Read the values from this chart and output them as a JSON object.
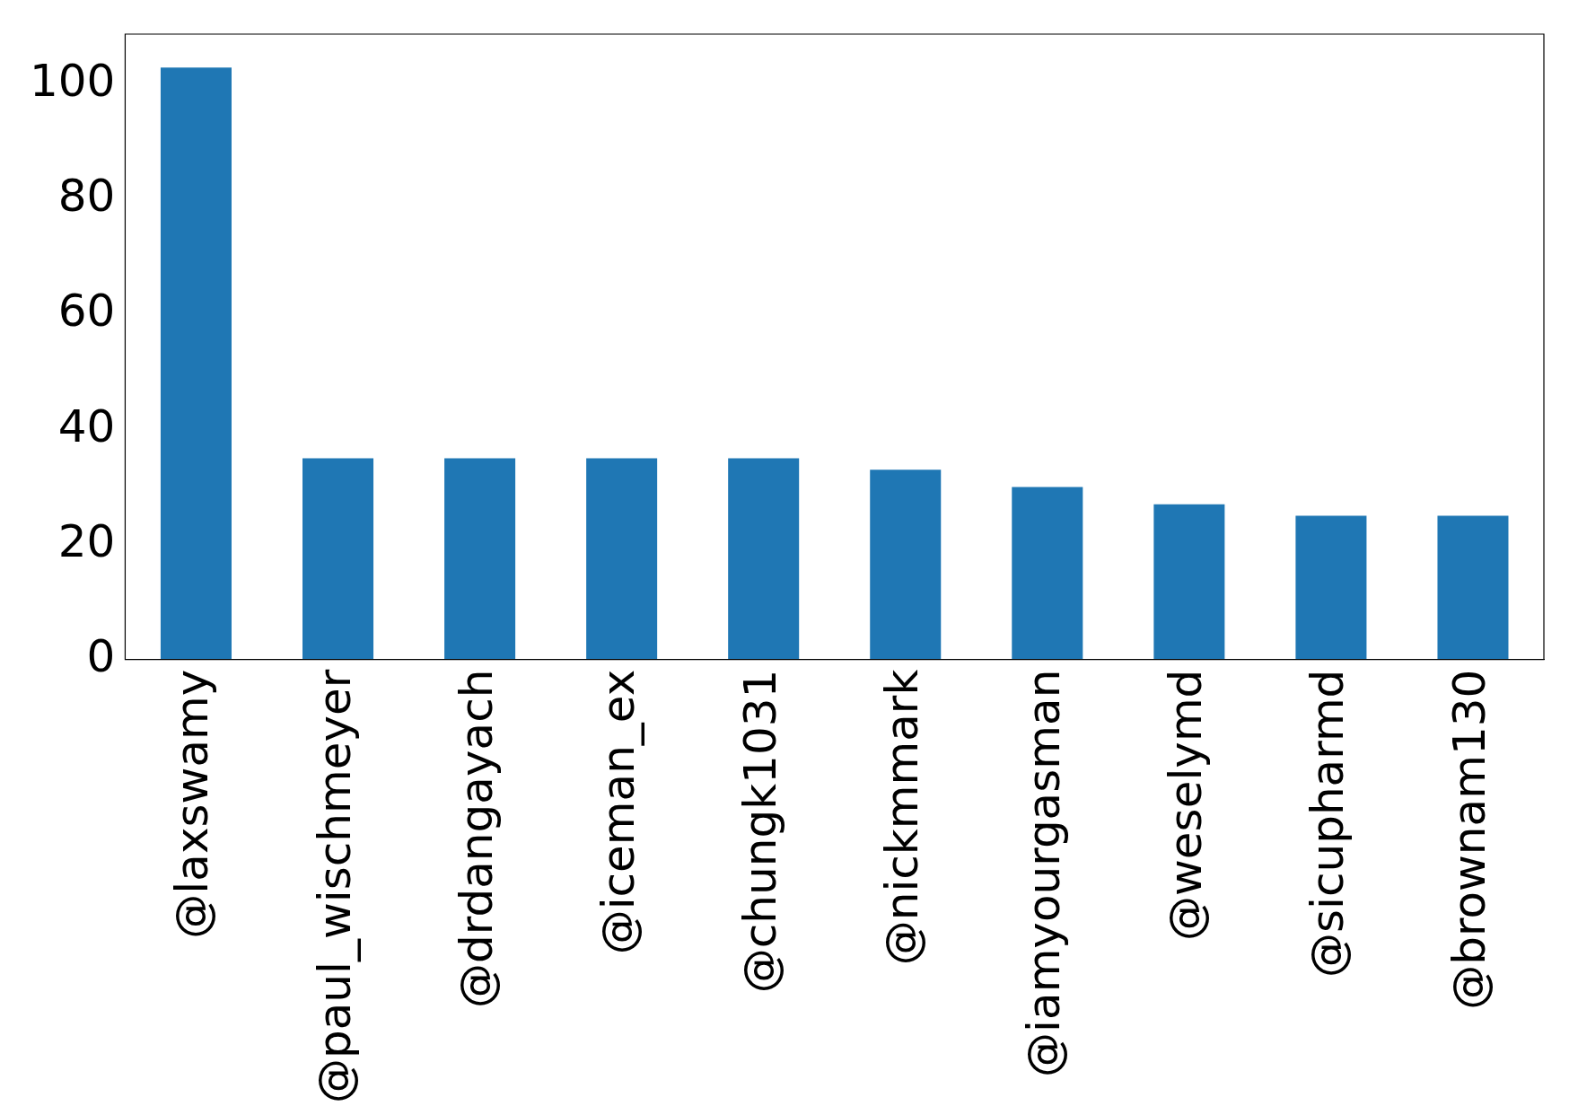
{
  "chart_data": {
    "type": "bar",
    "categories": [
      "@laxswamy",
      "@paul_wischmeyer",
      "@drdangayach",
      "@iceman_ex",
      "@chungk1031",
      "@nickmmark",
      "@iamyourgasman",
      "@weselymd",
      "@sicupharmd",
      "@brownam130"
    ],
    "values": [
      103,
      35,
      35,
      35,
      35,
      33,
      30,
      27,
      25,
      25
    ],
    "color": "#1f77b4",
    "ylim": [
      0,
      108.8
    ],
    "yticks": [
      0,
      20,
      40,
      60,
      80,
      100
    ],
    "grid": false,
    "legend": false
  }
}
